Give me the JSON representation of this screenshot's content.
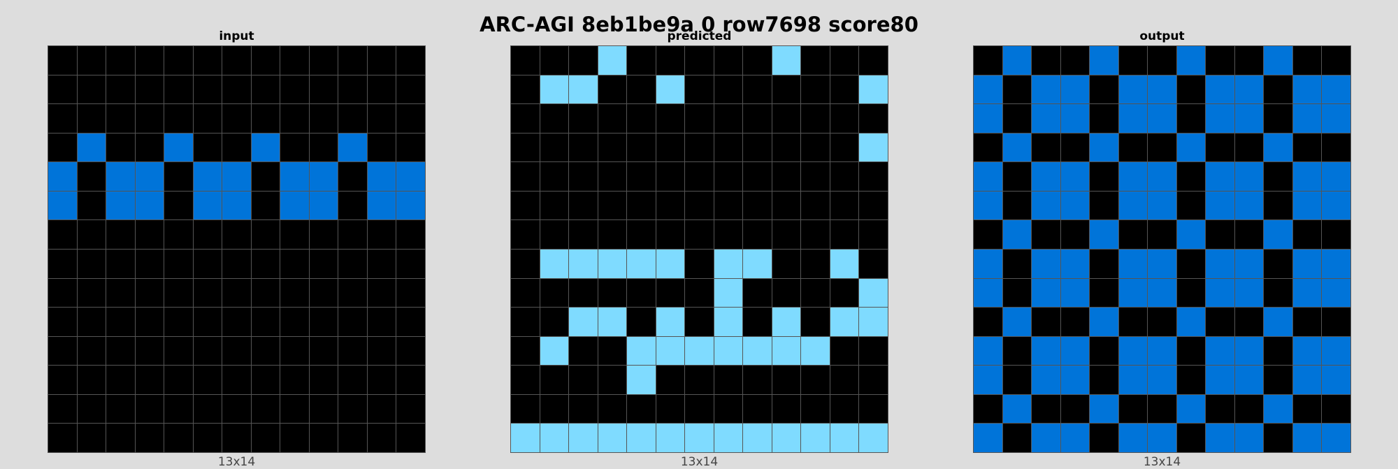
{
  "title": "ARC-AGI 8eb1be9a 0 row7698 score80",
  "colors": {
    "0": "#000000",
    "1": "#0074D9",
    "8": "#7FDBFF",
    "bg": "#dddddd",
    "grid_line": "#555555"
  },
  "panels": [
    {
      "label": "input",
      "dims": "13x14",
      "rows": [
        "0000000000000",
        "0000000000000",
        "0000000000000",
        "0100100100100",
        "1011011011011",
        "1011011011011",
        "0000000000000",
        "0000000000000",
        "0000000000000",
        "0000000000000",
        "0000000000000",
        "0000000000000",
        "0000000000000",
        "0000000000000"
      ]
    },
    {
      "label": "predicted",
      "dims": "13x14",
      "rows": [
        "0008000008000",
        "0880080000008",
        "0000000000000",
        "0000000000008",
        "0000000000000",
        "0000000000000",
        "0000000000000",
        "0888880880080",
        "0000000800008",
        "0088080808088",
        "0800888888800",
        "0000800000000",
        "0000000000000",
        "8888888888888"
      ]
    },
    {
      "label": "output",
      "dims": "13x14",
      "rows": [
        "0100100100100",
        "1011011011011",
        "1011011011011",
        "0100100100100",
        "1011011011011",
        "1011011011011",
        "0100100100100",
        "1011011011011",
        "1011011011011",
        "0100100100100",
        "1011011011011",
        "1011011011011",
        "0100100100100",
        "1011011011011"
      ]
    }
  ]
}
